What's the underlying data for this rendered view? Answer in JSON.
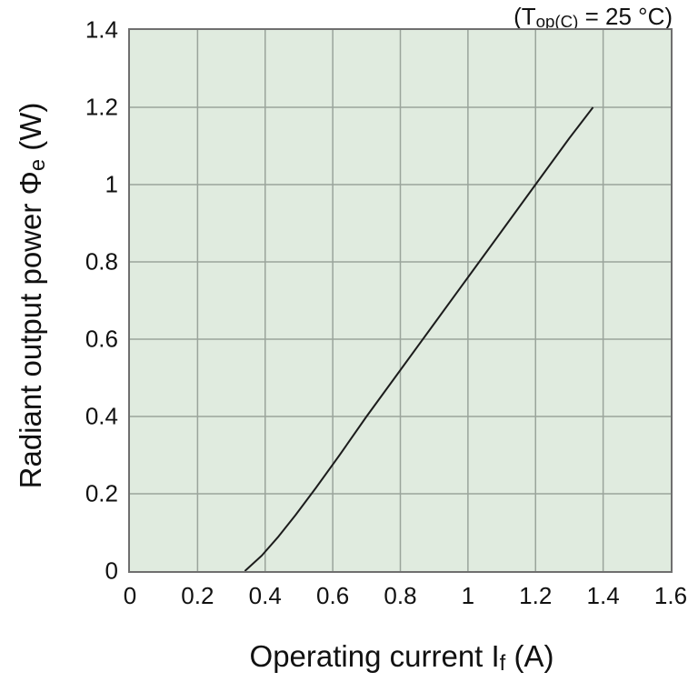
{
  "chart_data": {
    "type": "line",
    "title": "(Top(C) = 25 °C)",
    "xlabel": "Operating current If (A)",
    "ylabel": "Radiant output power Φe (W)",
    "annotation_parts": {
      "pre": "(T",
      "sub": "op(C)",
      "post": " = 25 °C)"
    },
    "xlabel_parts": {
      "pre": "Operating current I",
      "sub": "f",
      "post": " (A)"
    },
    "ylabel_parts": {
      "pre": "Radiant output power Φ",
      "sub": "e",
      "post": " (W)"
    },
    "xlim": [
      0,
      1.6
    ],
    "ylim": [
      0,
      1.4
    ],
    "xticks": [
      "0",
      "0.2",
      "0.4",
      "0.6",
      "0.8",
      "1",
      "1.2",
      "1.4",
      "1.6"
    ],
    "yticks": [
      "0",
      "0.2",
      "0.4",
      "0.6",
      "0.8",
      "1",
      "1.2",
      "1.4"
    ],
    "grid": true,
    "legend": false,
    "series": [
      {
        "name": "radiant-output-power-vs-operating-current",
        "points": [
          [
            0.34,
            0.0
          ],
          [
            0.39,
            0.04
          ],
          [
            0.44,
            0.09
          ],
          [
            0.49,
            0.145
          ],
          [
            0.55,
            0.215
          ],
          [
            0.62,
            0.3
          ],
          [
            0.7,
            0.4
          ],
          [
            0.8,
            0.52
          ],
          [
            0.9,
            0.64
          ],
          [
            1.0,
            0.76
          ],
          [
            1.1,
            0.88
          ],
          [
            1.2,
            1.0
          ],
          [
            1.3,
            1.12
          ],
          [
            1.37,
            1.2
          ]
        ]
      }
    ],
    "colors": {
      "page_background": "#ffffff",
      "plot_background": "#e0ebdf",
      "grid_line": "#9aa49b",
      "plot_border": "#6f6f6f",
      "data_line": "#1c1c1c",
      "text": "#111111"
    }
  }
}
